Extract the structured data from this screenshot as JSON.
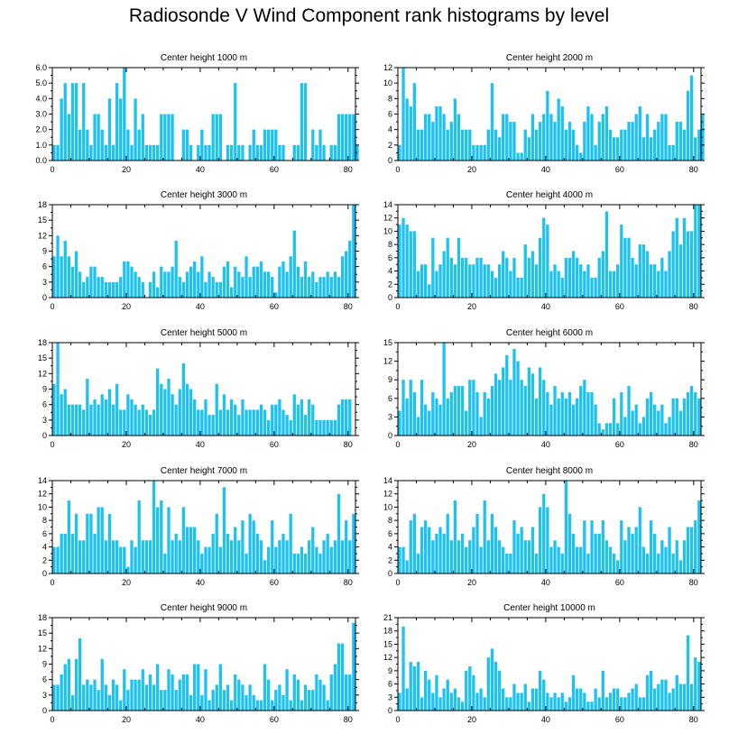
{
  "title": "Radiosonde V Wind Component rank histograms by level",
  "bar_color": "#1ec2f2",
  "chart_data": [
    {
      "type": "bar",
      "title": "Center height 1000 m",
      "xlim": [
        0,
        82
      ],
      "xticks": [
        0,
        20,
        40,
        60,
        80
      ],
      "ylim": [
        0,
        6
      ],
      "yticks": [
        0,
        1,
        2,
        3,
        4,
        5,
        6
      ],
      "ytick_labels": [
        "0.0",
        "1.0",
        "2.0",
        "3.0",
        "4.0",
        "5.0",
        "6.0"
      ],
      "values": [
        1,
        1,
        4,
        5,
        3,
        5,
        5,
        2,
        5,
        2,
        1,
        3,
        3,
        2,
        1,
        4,
        1,
        5,
        4,
        6,
        2,
        1,
        4,
        2,
        3,
        1,
        1,
        1,
        1,
        3,
        3,
        3,
        3,
        0,
        0,
        2,
        2,
        1,
        0,
        1,
        2,
        1,
        1,
        3,
        3,
        3,
        0,
        1,
        1,
        5,
        1,
        1,
        0,
        1,
        2,
        1,
        1,
        2,
        2,
        2,
        2,
        1,
        1,
        0,
        0,
        1,
        1,
        5,
        5,
        0,
        2,
        1,
        2,
        1,
        0,
        1,
        1,
        3,
        3,
        3,
        3,
        3,
        1
      ]
    },
    {
      "type": "bar",
      "title": "Center height 2000 m",
      "xlim": [
        0,
        82
      ],
      "xticks": [
        0,
        20,
        40,
        60,
        80
      ],
      "ylim": [
        0,
        12
      ],
      "yticks": [
        0,
        2,
        4,
        6,
        8,
        10,
        12
      ],
      "ytick_labels": [
        "0",
        "2",
        "4",
        "6",
        "8",
        "10",
        "12"
      ],
      "values": [
        2,
        12,
        8,
        7,
        10,
        4,
        4,
        6,
        6,
        5,
        7,
        7,
        6,
        4,
        5,
        8,
        6,
        4,
        4,
        4,
        2,
        2,
        2,
        2,
        4,
        10,
        4,
        3,
        6,
        6,
        5,
        5,
        1,
        1,
        4,
        3,
        6,
        4,
        5,
        6,
        9,
        6,
        5,
        8,
        7,
        4,
        5,
        4,
        2,
        1,
        5,
        7,
        6,
        2,
        5,
        6,
        7,
        4,
        3,
        3,
        4,
        4,
        5,
        5,
        6,
        7,
        3,
        6,
        3,
        4,
        5,
        6,
        6,
        2,
        2,
        5,
        5,
        4,
        9,
        11,
        3,
        4,
        6
      ]
    },
    {
      "type": "bar",
      "title": "Center height 3000 m",
      "xlim": [
        0,
        82
      ],
      "xticks": [
        0,
        20,
        40,
        60,
        80
      ],
      "ylim": [
        0,
        18
      ],
      "yticks": [
        0,
        3,
        6,
        9,
        12,
        15,
        18
      ],
      "ytick_labels": [
        "0",
        "3",
        "6",
        "9",
        "12",
        "15",
        "18"
      ],
      "values": [
        8,
        12,
        8,
        11,
        8,
        6,
        9,
        5,
        3,
        4,
        6,
        6,
        4,
        4,
        3,
        3,
        3,
        3,
        4,
        7,
        7,
        6,
        5,
        4,
        3,
        0,
        3,
        5,
        2,
        6,
        5,
        5,
        6,
        11,
        4,
        3,
        5,
        6,
        7,
        5,
        8,
        3,
        5,
        4,
        3,
        3,
        6,
        7,
        2,
        6,
        5,
        4,
        8,
        4,
        6,
        6,
        7,
        5,
        5,
        4,
        1,
        6,
        7,
        5,
        8,
        13,
        6,
        4,
        7,
        4,
        5,
        3,
        4,
        4,
        5,
        4,
        5,
        4,
        8,
        9,
        11,
        18
      ]
    },
    {
      "type": "bar",
      "title": "Center height 4000 m",
      "xlim": [
        0,
        82
      ],
      "xticks": [
        0,
        20,
        40,
        60,
        80
      ],
      "ylim": [
        0,
        14
      ],
      "yticks": [
        0,
        2,
        4,
        6,
        8,
        10,
        12,
        14
      ],
      "ytick_labels": [
        "0",
        "2",
        "4",
        "6",
        "8",
        "10",
        "12",
        "14"
      ],
      "values": [
        11,
        12,
        11,
        10,
        10,
        4,
        5,
        5,
        2,
        9,
        4,
        5,
        7,
        9,
        6,
        5,
        9,
        6,
        6,
        5,
        5,
        6,
        6,
        5,
        5,
        4,
        3,
        5,
        7,
        6,
        4,
        6,
        3,
        3,
        8,
        6,
        7,
        5,
        9,
        12,
        11,
        4,
        5,
        4,
        3,
        6,
        6,
        7,
        6,
        5,
        4,
        5,
        3,
        3,
        6,
        7,
        13,
        4,
        4,
        5,
        11,
        9,
        9,
        6,
        5,
        8,
        8,
        7,
        5,
        5,
        4,
        6,
        4,
        7,
        10,
        12,
        8,
        12,
        10,
        10,
        14,
        14
      ]
    },
    {
      "type": "bar",
      "title": "Center height 5000 m",
      "xlim": [
        0,
        82
      ],
      "xticks": [
        0,
        20,
        40,
        60,
        80
      ],
      "ylim": [
        0,
        18
      ],
      "yticks": [
        0,
        3,
        6,
        9,
        12,
        15,
        18
      ],
      "ytick_labels": [
        "0",
        "3",
        "6",
        "9",
        "12",
        "15",
        "18"
      ],
      "values": [
        10,
        18,
        8,
        9,
        6,
        6,
        6,
        6,
        5,
        11,
        6,
        7,
        6,
        8,
        7,
        9,
        6,
        10,
        5,
        5,
        8,
        7,
        6,
        5,
        6,
        5,
        4,
        5,
        13,
        10,
        9,
        11,
        8,
        6,
        9,
        14,
        10,
        9,
        7,
        5,
        5,
        7,
        4,
        4,
        10,
        5,
        8,
        5,
        7,
        6,
        4,
        7,
        5,
        5,
        5,
        5,
        6,
        5,
        3,
        6,
        6,
        7,
        5,
        4,
        3,
        8,
        6,
        7,
        4,
        7,
        6,
        3,
        3,
        3,
        3,
        3,
        3,
        6,
        7,
        7,
        7
      ]
    },
    {
      "type": "bar",
      "title": "Center height 6000 m",
      "xlim": [
        0,
        82
      ],
      "xticks": [
        0,
        20,
        40,
        60,
        80
      ],
      "ylim": [
        0,
        15
      ],
      "yticks": [
        0,
        3,
        6,
        9,
        12,
        15
      ],
      "ytick_labels": [
        "0",
        "3",
        "6",
        "9",
        "12",
        "15"
      ],
      "values": [
        4,
        9,
        6,
        9,
        7,
        3,
        9,
        5,
        4,
        7,
        6,
        5,
        15,
        6,
        7,
        8,
        8,
        8,
        4,
        9,
        9,
        7,
        3,
        7,
        6,
        8,
        10,
        9,
        11,
        13,
        9,
        14,
        12,
        9,
        8,
        11,
        10,
        6,
        11,
        9,
        7,
        5,
        8,
        6,
        7,
        6,
        7,
        5,
        6,
        8,
        9,
        7,
        7,
        5,
        2,
        1,
        2,
        2,
        6,
        2,
        7,
        3,
        8,
        4,
        5,
        2,
        3,
        6,
        7,
        5,
        4,
        5,
        2,
        3,
        6,
        6,
        4,
        6,
        7,
        8,
        7,
        6
      ]
    },
    {
      "type": "bar",
      "title": "Center height 7000 m",
      "xlim": [
        0,
        82
      ],
      "xticks": [
        0,
        20,
        40,
        60,
        80
      ],
      "ylim": [
        0,
        14
      ],
      "yticks": [
        0,
        2,
        4,
        6,
        8,
        10,
        12,
        14
      ],
      "ytick_labels": [
        "0",
        "2",
        "4",
        "6",
        "8",
        "10",
        "12",
        "14"
      ],
      "values": [
        4,
        4,
        6,
        6,
        11,
        6,
        9,
        5,
        5,
        9,
        9,
        6,
        10,
        10,
        5,
        9,
        5,
        5,
        4,
        4,
        1,
        5,
        4,
        11,
        5,
        5,
        5,
        14,
        10,
        11,
        3,
        10,
        5,
        6,
        5,
        10,
        7,
        7,
        7,
        5,
        3,
        4,
        4,
        6,
        9,
        4,
        13,
        6,
        5,
        7,
        5,
        8,
        3,
        9,
        8,
        6,
        5,
        2,
        4,
        8,
        4,
        5,
        6,
        5,
        9,
        3,
        3,
        4,
        3,
        5,
        7,
        4,
        3,
        5,
        6,
        4,
        5,
        12,
        5,
        8,
        5,
        9
      ]
    },
    {
      "type": "bar",
      "title": "Center height 8000 m",
      "xlim": [
        0,
        82
      ],
      "xticks": [
        0,
        20,
        40,
        60,
        80
      ],
      "ylim": [
        0,
        14
      ],
      "yticks": [
        0,
        2,
        4,
        6,
        8,
        10,
        12,
        14
      ],
      "ytick_labels": [
        "0",
        "2",
        "4",
        "6",
        "8",
        "10",
        "12",
        "14"
      ],
      "values": [
        4,
        4,
        2,
        8,
        9,
        3,
        7,
        8,
        7,
        5,
        6,
        7,
        6,
        9,
        5,
        11,
        5,
        6,
        4,
        5,
        7,
        9,
        4,
        11,
        5,
        9,
        7,
        5,
        4,
        3,
        3,
        8,
        6,
        7,
        5,
        5,
        7,
        3,
        10,
        12,
        10,
        4,
        5,
        4,
        3,
        14,
        9,
        6,
        4,
        4,
        8,
        3,
        8,
        6,
        6,
        8,
        5,
        4,
        3,
        2,
        8,
        5,
        7,
        6,
        7,
        10,
        4,
        3,
        8,
        6,
        3,
        5,
        4,
        7,
        3,
        5,
        2,
        5,
        7,
        7,
        8,
        11
      ]
    },
    {
      "type": "bar",
      "title": "Center height 9000 m",
      "xlim": [
        0,
        82
      ],
      "xticks": [
        0,
        20,
        40,
        60,
        80
      ],
      "ylim": [
        0,
        18
      ],
      "yticks": [
        0,
        3,
        6,
        9,
        12,
        15,
        18
      ],
      "ytick_labels": [
        "0",
        "3",
        "6",
        "9",
        "12",
        "15",
        "18"
      ],
      "values": [
        5,
        5,
        7,
        9,
        10,
        3,
        10,
        14,
        5,
        6,
        5,
        6,
        4,
        10,
        5,
        3,
        6,
        5,
        2,
        8,
        4,
        6,
        6,
        6,
        8,
        5,
        7,
        5,
        9,
        4,
        4,
        8,
        7,
        4,
        6,
        7,
        7,
        3,
        9,
        9,
        3,
        8,
        2,
        4,
        5,
        9,
        4,
        5,
        2,
        7,
        6,
        5,
        3,
        5,
        3,
        2,
        2,
        9,
        6,
        2,
        4,
        5,
        3,
        8,
        2,
        7,
        6,
        2,
        5,
        4,
        4,
        7,
        6,
        5,
        2,
        7,
        9,
        13,
        13,
        7,
        7,
        17
      ]
    },
    {
      "type": "bar",
      "title": "Center height 10000 m",
      "xlim": [
        0,
        82
      ],
      "xticks": [
        0,
        20,
        40,
        60,
        80
      ],
      "ylim": [
        0,
        21
      ],
      "yticks": [
        0,
        3,
        6,
        9,
        12,
        15,
        18,
        21
      ],
      "ytick_labels": [
        "0",
        "3",
        "6",
        "9",
        "12",
        "15",
        "18",
        "21"
      ],
      "values": [
        4,
        19,
        5,
        11,
        10,
        11,
        3,
        9,
        7,
        4,
        8,
        3,
        5,
        7,
        4,
        5,
        3,
        2,
        9,
        10,
        8,
        4,
        5,
        3,
        12,
        14,
        11,
        9,
        5,
        3,
        3,
        6,
        4,
        4,
        6,
        2,
        5,
        5,
        9,
        7,
        4,
        3,
        4,
        3,
        4,
        2,
        3,
        8,
        5,
        5,
        4,
        2,
        2,
        5,
        3,
        9,
        3,
        4,
        5,
        5,
        3,
        3,
        4,
        5,
        6,
        3,
        3,
        8,
        9,
        5,
        6,
        7,
        7,
        4,
        5,
        8,
        6,
        6,
        17,
        6,
        12,
        11
      ]
    }
  ]
}
